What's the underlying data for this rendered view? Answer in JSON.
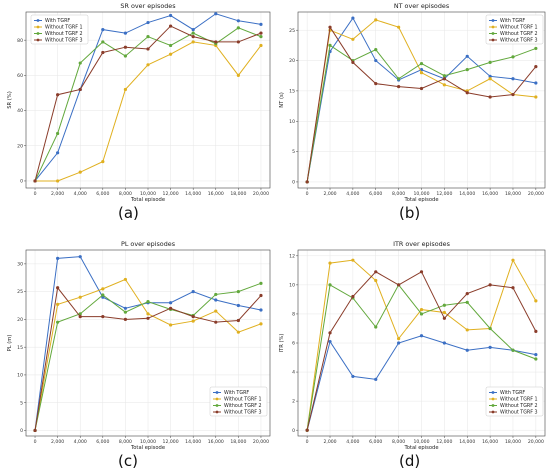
{
  "series_colors": [
    "#3b6fc4",
    "#e0b020",
    "#62a83c",
    "#8a3c2a"
  ],
  "chart_data": [
    {
      "type": "line",
      "title": "SR over episodes",
      "panel_label": "(a)",
      "xlabel": "Total episode",
      "ylabel": "SR (%)",
      "x": [
        0,
        2000,
        4000,
        6000,
        8000,
        10000,
        12000,
        14000,
        16000,
        18000,
        20000
      ],
      "xticks": [
        "0",
        "2,000",
        "4,000",
        "6,000",
        "8,000",
        "10,000",
        "12,000",
        "14,000",
        "16,000",
        "18,000",
        "20,000"
      ],
      "ylim": [
        -4,
        96
      ],
      "yticks": [
        0,
        20,
        40,
        60,
        80
      ],
      "grid": true,
      "legend": "top-left",
      "series": [
        {
          "name": "With TGRF",
          "values": [
            0,
            16,
            52,
            86,
            84,
            90,
            94,
            86,
            95,
            91,
            89
          ]
        },
        {
          "name": "Without TGRF 1",
          "values": [
            0,
            0,
            5,
            11,
            52,
            66,
            72,
            79,
            77,
            60,
            77
          ]
        },
        {
          "name": "Without TGRF 2",
          "values": [
            0,
            27,
            67,
            79,
            71,
            82,
            77,
            84,
            78,
            87,
            82
          ]
        },
        {
          "name": "Without TGRF 3",
          "values": [
            0,
            49,
            52,
            73,
            76,
            75,
            88,
            82,
            79,
            79,
            84
          ]
        }
      ]
    },
    {
      "type": "line",
      "title": "NT over episodes",
      "panel_label": "(b)",
      "xlabel": "Total episode",
      "ylabel": "NT (s)",
      "x": [
        0,
        2000,
        4000,
        6000,
        8000,
        10000,
        12000,
        14000,
        16000,
        18000,
        20000
      ],
      "xticks": [
        "0",
        "2,000",
        "4,000",
        "6,000",
        "8,000",
        "10,000",
        "12,000",
        "14,000",
        "16,000",
        "18,000",
        "20,000"
      ],
      "ylim": [
        -1,
        28
      ],
      "yticks": [
        0,
        5,
        10,
        15,
        20,
        25
      ],
      "grid": true,
      "legend": "top-right",
      "series": [
        {
          "name": "With TGRF",
          "values": [
            0,
            21.5,
            27,
            20,
            16.8,
            18.5,
            17,
            20.7,
            17.4,
            17,
            16.3
          ]
        },
        {
          "name": "Without TGRF 1",
          "values": [
            0,
            25,
            23.5,
            26.7,
            25.5,
            18,
            16,
            15,
            17,
            14.4,
            14
          ]
        },
        {
          "name": "Without TGRF 2",
          "values": [
            0,
            22.5,
            20,
            21.8,
            17,
            19.5,
            17.5,
            18.5,
            19.7,
            20.6,
            22
          ]
        },
        {
          "name": "Without TGRF 3",
          "values": [
            0,
            25.5,
            19.7,
            16.2,
            15.7,
            15.4,
            17,
            14.7,
            14,
            14.4,
            19
          ]
        }
      ]
    },
    {
      "type": "line",
      "title": "PL over episodes",
      "panel_label": "(c)",
      "xlabel": "Total episode",
      "ylabel": "PL (m)",
      "x": [
        0,
        2000,
        4000,
        6000,
        8000,
        10000,
        12000,
        14000,
        16000,
        18000,
        20000
      ],
      "xticks": [
        "0",
        "2,000",
        "4,000",
        "6,000",
        "8,000",
        "10,000",
        "12,000",
        "14,000",
        "16,000",
        "18,000",
        "20,000"
      ],
      "ylim": [
        -1,
        32.5
      ],
      "yticks": [
        0,
        5,
        10,
        15,
        20,
        25,
        30
      ],
      "grid": true,
      "legend": "bottom-right",
      "series": [
        {
          "name": "With TGRF",
          "values": [
            0,
            31,
            31.3,
            24,
            22,
            23,
            23,
            25,
            23.5,
            22.5,
            21.7
          ]
        },
        {
          "name": "Without TGRF 1",
          "values": [
            0,
            22.7,
            24,
            25.5,
            27.2,
            21,
            19,
            19.7,
            21.5,
            17.7,
            19.2
          ]
        },
        {
          "name": "Without TGRF 2",
          "values": [
            0,
            19.5,
            21,
            24.4,
            21.3,
            23.2,
            21.8,
            20.7,
            24.5,
            25,
            26.5
          ]
        },
        {
          "name": "Without TGRF 3",
          "values": [
            0,
            25.7,
            20.5,
            20.5,
            20,
            20.2,
            22,
            20.5,
            19.5,
            19.8,
            24.3
          ]
        }
      ]
    },
    {
      "type": "line",
      "title": "ITR over episodes",
      "panel_label": "(d)",
      "xlabel": "Total episode",
      "ylabel": "ITR (%)",
      "x": [
        0,
        2000,
        4000,
        6000,
        8000,
        10000,
        12000,
        14000,
        16000,
        18000,
        20000
      ],
      "xticks": [
        "0",
        "2,000",
        "4,000",
        "6,000",
        "8,000",
        "10,000",
        "12,000",
        "14,000",
        "16,000",
        "18,000",
        "20,000"
      ],
      "ylim": [
        -0.4,
        12.4
      ],
      "yticks": [
        0,
        2,
        4,
        6,
        8,
        10,
        12
      ],
      "grid": true,
      "legend": "bottom-right",
      "series": [
        {
          "name": "With TGRF",
          "values": [
            0,
            6.1,
            3.7,
            3.5,
            6,
            6.5,
            6,
            5.5,
            5.7,
            5.5,
            5.2
          ]
        },
        {
          "name": "Without TGRF 1",
          "values": [
            0,
            11.5,
            11.7,
            10.3,
            6.3,
            8.3,
            8.1,
            6.9,
            7,
            11.7,
            8.9
          ]
        },
        {
          "name": "Without TGRF 2",
          "values": [
            0,
            10,
            9.1,
            7.1,
            10,
            8,
            8.6,
            8.8,
            7,
            5.5,
            4.9
          ]
        },
        {
          "name": "Without TGRF 3",
          "values": [
            0,
            6.7,
            9.2,
            10.9,
            10,
            10.9,
            7.7,
            9.4,
            10,
            9.8,
            6.8
          ]
        }
      ]
    }
  ]
}
